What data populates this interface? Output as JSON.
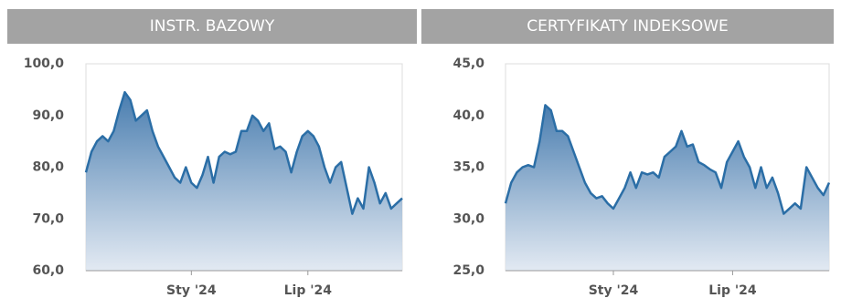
{
  "chart_data": [
    {
      "type": "area",
      "title": "INSTR. BAZOWY",
      "categories": [
        null,
        null,
        null,
        null,
        null,
        null,
        null,
        null,
        null,
        null,
        null,
        null,
        null,
        null,
        null,
        null,
        null,
        null,
        null,
        "Sty '24",
        null,
        null,
        null,
        null,
        null,
        null,
        null,
        null,
        null,
        null,
        null,
        null,
        null,
        null,
        null,
        null,
        null,
        null,
        null,
        null,
        "Lip '24",
        null,
        null,
        null,
        null,
        null,
        null,
        null,
        null,
        null,
        null,
        null,
        null,
        null,
        null,
        null,
        null,
        null
      ],
      "values": [
        79,
        83,
        85,
        86,
        85,
        87,
        91,
        94.5,
        93,
        89,
        90,
        91,
        87,
        84,
        82,
        80,
        78,
        77,
        80,
        77,
        76,
        78.5,
        82,
        77,
        82,
        83,
        82.5,
        83,
        87,
        87,
        90,
        89,
        87,
        88.5,
        83.5,
        84,
        83,
        79,
        83,
        86,
        87,
        86,
        84,
        80,
        77,
        80,
        81,
        76,
        71,
        74,
        72,
        80,
        77,
        73,
        75,
        72,
        73,
        74
      ],
      "color": "#2b6ea6",
      "ylim": [
        60,
        100
      ],
      "yticks": [
        {
          "value": 60,
          "label": "60,0"
        },
        {
          "value": 70,
          "label": "70,0"
        },
        {
          "value": 80,
          "label": "80,0"
        },
        {
          "value": 90,
          "label": "90,0"
        },
        {
          "value": 100,
          "label": "100,0"
        }
      ],
      "grid": false
    },
    {
      "type": "area",
      "title": "CERTYFIKATY INDEKSOWE",
      "categories": [
        null,
        null,
        null,
        null,
        null,
        null,
        null,
        null,
        null,
        null,
        null,
        null,
        null,
        null,
        null,
        null,
        null,
        null,
        null,
        "Sty '24",
        null,
        null,
        null,
        null,
        null,
        null,
        null,
        null,
        null,
        null,
        null,
        null,
        null,
        null,
        null,
        null,
        null,
        null,
        null,
        null,
        "Lip '24",
        null,
        null,
        null,
        null,
        null,
        null,
        null,
        null,
        null,
        null,
        null,
        null,
        null,
        null,
        null,
        null,
        null
      ],
      "values": [
        31.5,
        33.5,
        34.5,
        35,
        35.2,
        35,
        37.5,
        41,
        40.5,
        38.5,
        38.5,
        38,
        36.5,
        35,
        33.5,
        32.5,
        32,
        32.2,
        31.5,
        31,
        32,
        33,
        34.5,
        33,
        34.5,
        34.3,
        34.5,
        34,
        36,
        36.5,
        37,
        38.5,
        37,
        37.2,
        35.5,
        35.2,
        34.8,
        34.5,
        33,
        35.5,
        36.5,
        37.5,
        36,
        35,
        33,
        35,
        33,
        34,
        32.5,
        30.5,
        31,
        31.5,
        31,
        35,
        34,
        33,
        32.3,
        33.5
      ],
      "color": "#2b6ea6",
      "ylim": [
        25,
        45
      ],
      "yticks": [
        {
          "value": 25,
          "label": "25,0"
        },
        {
          "value": 30,
          "label": "30,0"
        },
        {
          "value": 35,
          "label": "35,0"
        },
        {
          "value": 40,
          "label": "40,0"
        },
        {
          "value": 45,
          "label": "45,0"
        }
      ],
      "grid": false
    }
  ]
}
